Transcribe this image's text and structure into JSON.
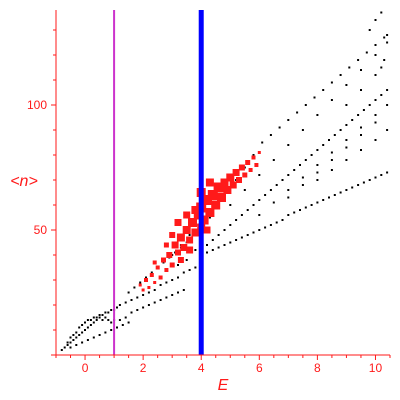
{
  "chart_data": {
    "type": "scatter",
    "title": "",
    "xlabel": "E",
    "ylabel": "<n>",
    "xlim": [
      -1,
      10.5
    ],
    "ylim": [
      0,
      138
    ],
    "x_ticks": [
      0,
      2,
      4,
      6,
      8,
      10
    ],
    "y_ticks": [
      50,
      100
    ],
    "grid": false,
    "legend": "none",
    "vertical_lines": [
      {
        "x": 1.0,
        "color": "#cc33cc"
      },
      {
        "x": 4.0,
        "color": "#0000ff"
      }
    ],
    "series": [
      {
        "marker": "small black dots",
        "color": "#000000",
        "points": [
          [
            -0.8,
            2
          ],
          [
            -0.7,
            3
          ],
          [
            -0.6,
            4
          ],
          [
            -0.5,
            5
          ],
          [
            -0.4,
            6
          ],
          [
            -0.3,
            7
          ],
          [
            -0.2,
            8
          ],
          [
            -0.1,
            9
          ],
          [
            0.0,
            10
          ],
          [
            0.1,
            11
          ],
          [
            0.2,
            12
          ],
          [
            0.3,
            13
          ],
          [
            0.4,
            14
          ],
          [
            0.5,
            15
          ],
          [
            0.6,
            16
          ],
          [
            0.7,
            17
          ],
          [
            0.8,
            17
          ],
          [
            0.9,
            18
          ],
          [
            1.0,
            18
          ],
          [
            -0.6,
            5
          ],
          [
            -0.5,
            7
          ],
          [
            -0.4,
            8
          ],
          [
            -0.3,
            9
          ],
          [
            -0.2,
            11
          ],
          [
            -0.1,
            12
          ],
          [
            0.0,
            13
          ],
          [
            0.1,
            14
          ],
          [
            0.2,
            14
          ],
          [
            0.3,
            15
          ],
          [
            0.4,
            15
          ],
          [
            0.5,
            16
          ],
          [
            0.6,
            14
          ],
          [
            0.7,
            15
          ],
          [
            0.8,
            14
          ],
          [
            0.9,
            13
          ],
          [
            1.0,
            14
          ],
          [
            -0.5,
            3
          ],
          [
            -0.3,
            4
          ],
          [
            -0.1,
            5
          ],
          [
            0.1,
            6
          ],
          [
            0.3,
            7
          ],
          [
            0.5,
            8
          ],
          [
            0.7,
            9
          ],
          [
            0.9,
            10
          ],
          [
            1.1,
            11
          ],
          [
            1.3,
            12
          ],
          [
            1.5,
            13
          ],
          [
            1.1,
            19
          ],
          [
            1.2,
            20
          ],
          [
            1.4,
            21
          ],
          [
            1.6,
            22
          ],
          [
            1.8,
            23
          ],
          [
            2.0,
            24
          ],
          [
            2.2,
            25
          ],
          [
            2.4,
            26
          ],
          [
            2.6,
            28
          ],
          [
            2.8,
            29
          ],
          [
            3.0,
            30
          ],
          [
            3.2,
            31
          ],
          [
            3.4,
            33
          ],
          [
            3.6,
            34
          ],
          [
            3.8,
            35
          ],
          [
            4.0,
            36
          ],
          [
            1.2,
            14
          ],
          [
            1.4,
            15
          ],
          [
            1.6,
            17
          ],
          [
            1.8,
            18
          ],
          [
            2.0,
            19
          ],
          [
            2.2,
            20
          ],
          [
            2.4,
            21
          ],
          [
            2.6,
            22
          ],
          [
            2.8,
            23
          ],
          [
            3.0,
            24
          ],
          [
            3.2,
            25
          ],
          [
            3.4,
            26
          ],
          [
            1.5,
            25
          ],
          [
            1.7,
            27
          ],
          [
            1.9,
            29
          ],
          [
            2.1,
            31
          ],
          [
            2.3,
            33
          ],
          [
            2.5,
            35
          ],
          [
            2.7,
            37
          ],
          [
            2.9,
            39
          ],
          [
            3.1,
            41
          ],
          [
            3.3,
            43
          ],
          [
            3.5,
            45
          ],
          [
            4.0,
            40
          ],
          [
            4.2,
            41
          ],
          [
            4.4,
            42
          ],
          [
            4.6,
            43
          ],
          [
            4.8,
            44
          ],
          [
            5.0,
            45
          ],
          [
            5.2,
            46
          ],
          [
            5.4,
            47
          ],
          [
            5.6,
            48
          ],
          [
            5.8,
            49
          ],
          [
            6.0,
            50
          ],
          [
            6.2,
            51
          ],
          [
            6.4,
            52
          ],
          [
            6.6,
            53
          ],
          [
            6.8,
            54
          ],
          [
            7.0,
            56
          ],
          [
            7.2,
            57
          ],
          [
            7.4,
            58
          ],
          [
            7.6,
            59
          ],
          [
            7.8,
            60
          ],
          [
            8.0,
            61
          ],
          [
            8.2,
            62
          ],
          [
            8.4,
            63
          ],
          [
            8.6,
            64
          ],
          [
            8.8,
            65
          ],
          [
            9.0,
            66
          ],
          [
            9.2,
            67
          ],
          [
            9.4,
            68
          ],
          [
            9.6,
            69
          ],
          [
            9.8,
            70
          ],
          [
            10.0,
            71
          ],
          [
            10.2,
            72
          ],
          [
            10.4,
            73
          ],
          [
            4.2,
            44
          ],
          [
            4.4,
            46
          ],
          [
            4.6,
            48
          ],
          [
            4.8,
            50
          ],
          [
            5.0,
            52
          ],
          [
            5.2,
            54
          ],
          [
            5.4,
            56
          ],
          [
            5.6,
            58
          ],
          [
            5.8,
            60
          ],
          [
            6.0,
            62
          ],
          [
            6.2,
            64
          ],
          [
            6.4,
            66
          ],
          [
            6.6,
            68
          ],
          [
            6.8,
            70
          ],
          [
            7.0,
            72
          ],
          [
            7.2,
            74
          ],
          [
            7.4,
            76
          ],
          [
            7.6,
            78
          ],
          [
            7.8,
            80
          ],
          [
            8.0,
            82
          ],
          [
            8.2,
            84
          ],
          [
            8.4,
            86
          ],
          [
            8.6,
            88
          ],
          [
            8.8,
            90
          ],
          [
            9.0,
            92
          ],
          [
            9.2,
            94
          ],
          [
            9.4,
            96
          ],
          [
            9.6,
            98
          ],
          [
            9.8,
            100
          ],
          [
            10.0,
            102
          ],
          [
            10.2,
            104
          ],
          [
            10.4,
            106
          ],
          [
            4.0,
            50
          ],
          [
            4.3,
            55
          ],
          [
            4.6,
            60
          ],
          [
            4.9,
            65
          ],
          [
            5.2,
            70
          ],
          [
            5.5,
            75
          ],
          [
            5.8,
            80
          ],
          [
            6.1,
            85
          ],
          [
            6.4,
            88
          ],
          [
            6.7,
            91
          ],
          [
            7.0,
            94
          ],
          [
            7.3,
            97
          ],
          [
            7.6,
            100
          ],
          [
            7.9,
            103
          ],
          [
            8.2,
            106
          ],
          [
            8.5,
            109
          ],
          [
            8.8,
            112
          ],
          [
            9.1,
            115
          ],
          [
            9.4,
            118
          ],
          [
            9.7,
            121
          ],
          [
            10.0,
            124
          ],
          [
            10.3,
            127
          ],
          [
            10.4,
            128
          ],
          [
            5.0,
            60
          ],
          [
            5.5,
            66
          ],
          [
            6.0,
            72
          ],
          [
            6.5,
            78
          ],
          [
            7.0,
            84
          ],
          [
            7.5,
            90
          ],
          [
            8.0,
            96
          ],
          [
            8.5,
            102
          ],
          [
            9.0,
            108
          ],
          [
            9.5,
            114
          ],
          [
            10.0,
            120
          ],
          [
            10.4,
            125
          ],
          [
            6.0,
            56
          ],
          [
            6.5,
            61
          ],
          [
            7.0,
            66
          ],
          [
            7.5,
            71
          ],
          [
            8.0,
            76
          ],
          [
            8.5,
            81
          ],
          [
            9.0,
            86
          ],
          [
            9.5,
            91
          ],
          [
            10.0,
            96
          ],
          [
            10.4,
            100
          ],
          [
            7.0,
            63
          ],
          [
            7.5,
            68
          ],
          [
            8.0,
            73
          ],
          [
            8.5,
            78
          ],
          [
            9.0,
            83
          ],
          [
            9.5,
            88
          ],
          [
            10.0,
            93
          ],
          [
            8.0,
            70
          ],
          [
            8.5,
            74
          ],
          [
            9.0,
            78
          ],
          [
            9.5,
            82
          ],
          [
            10.0,
            86
          ],
          [
            10.4,
            90
          ],
          [
            9.0,
            100
          ],
          [
            9.5,
            106
          ],
          [
            10.0,
            112
          ],
          [
            10.2,
            115
          ],
          [
            10.3,
            118
          ],
          [
            9.8,
            130
          ],
          [
            10.0,
            134
          ],
          [
            10.2,
            137
          ],
          [
            3.0,
            40
          ],
          [
            3.3,
            44
          ],
          [
            3.6,
            48
          ],
          [
            3.9,
            52
          ],
          [
            3.2,
            36
          ],
          [
            3.5,
            38
          ],
          [
            3.8,
            42
          ]
        ]
      },
      {
        "marker": "red squares of varying size",
        "color": "#ff1a1a",
        "points": [
          [
            1.9,
            28,
            3
          ],
          [
            2.0,
            26,
            3
          ],
          [
            2.1,
            30,
            4
          ],
          [
            2.2,
            27,
            3
          ],
          [
            2.3,
            32,
            4
          ],
          [
            2.4,
            29,
            3
          ],
          [
            2.5,
            35,
            4
          ],
          [
            2.6,
            31,
            4
          ],
          [
            2.7,
            38,
            5
          ],
          [
            2.8,
            34,
            4
          ],
          [
            2.9,
            40,
            6
          ],
          [
            3.0,
            36,
            5
          ],
          [
            3.1,
            44,
            7
          ],
          [
            3.2,
            41,
            6
          ],
          [
            3.3,
            47,
            8
          ],
          [
            3.4,
            43,
            7
          ],
          [
            3.5,
            50,
            8
          ],
          [
            3.6,
            46,
            7
          ],
          [
            3.7,
            53,
            9
          ],
          [
            3.8,
            49,
            8
          ],
          [
            3.9,
            56,
            9
          ],
          [
            4.0,
            51,
            8
          ],
          [
            4.0,
            59,
            10
          ],
          [
            4.1,
            54,
            9
          ],
          [
            4.2,
            62,
            10
          ],
          [
            4.3,
            57,
            9
          ],
          [
            4.4,
            64,
            10
          ],
          [
            4.5,
            60,
            9
          ],
          [
            4.6,
            67,
            10
          ],
          [
            4.7,
            63,
            9
          ],
          [
            4.8,
            69,
            8
          ],
          [
            4.9,
            66,
            8
          ],
          [
            5.0,
            71,
            8
          ],
          [
            5.1,
            68,
            7
          ],
          [
            5.2,
            73,
            7
          ],
          [
            5.3,
            70,
            6
          ],
          [
            5.4,
            75,
            6
          ],
          [
            5.5,
            72,
            5
          ],
          [
            5.6,
            77,
            5
          ],
          [
            5.7,
            74,
            4
          ],
          [
            5.8,
            79,
            4
          ],
          [
            5.9,
            76,
            4
          ],
          [
            6.0,
            81,
            3
          ],
          [
            3.2,
            53,
            7
          ],
          [
            3.5,
            56,
            7
          ],
          [
            3.8,
            58,
            8
          ],
          [
            4.0,
            65,
            9
          ],
          [
            4.3,
            69,
            8
          ],
          [
            2.4,
            37,
            4
          ],
          [
            2.8,
            44,
            5
          ],
          [
            3.0,
            48,
            6
          ],
          [
            3.3,
            38,
            6
          ],
          [
            3.6,
            42,
            7
          ],
          [
            4.2,
            50,
            7
          ]
        ]
      }
    ]
  }
}
